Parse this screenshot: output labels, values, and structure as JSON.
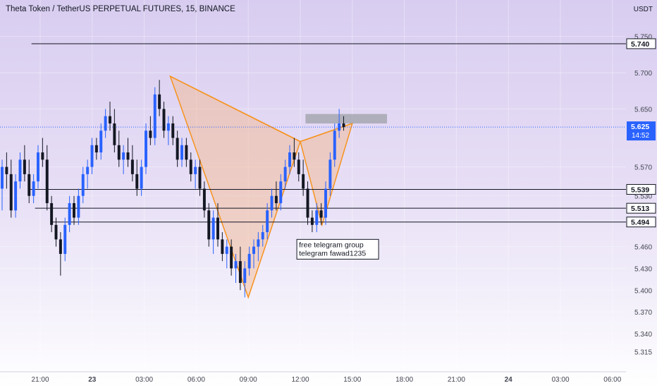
{
  "header": {
    "title": "Theta Token / TetherUS PERPETUAL FUTURES, 15, BINANCE",
    "currency": "USDT"
  },
  "colors": {
    "up": "#2962ff",
    "down": "#131722",
    "pattern_fill": "#f5b58a",
    "pattern_stroke": "#f7931e",
    "level_line": "#131722",
    "price_line": "#2962ff",
    "resistance_box": "#9ea0a8"
  },
  "chart_data": {
    "type": "candlestick",
    "ylim": [
      5.3,
      5.775
    ],
    "y_ticks": [
      "5.750",
      "5.700",
      "5.650",
      "5.570",
      "5.530",
      "5.460",
      "5.430",
      "5.400",
      "5.370",
      "5.340",
      "5.315"
    ],
    "x_ticks": [
      "21:00",
      "23",
      "03:00",
      "06:00",
      "09:00",
      "12:00",
      "15:00",
      "18:00",
      "21:00",
      "24",
      "03:00",
      "06:00"
    ],
    "horizontal_levels": [
      {
        "label": "5.740",
        "value": 5.74
      },
      {
        "label": "5.539",
        "value": 5.539
      },
      {
        "label": "5.513",
        "value": 5.513
      },
      {
        "label": "5.494",
        "value": 5.494
      }
    ],
    "last_price": {
      "label": "5.625",
      "value": 5.625,
      "countdown": "14:52"
    },
    "harmonic_pattern": [
      {
        "t": 4.5,
        "p": 5.695
      },
      {
        "t": 9.0,
        "p": 5.39
      },
      {
        "t": 12.0,
        "p": 5.605
      },
      {
        "t": 13.25,
        "p": 5.49
      },
      {
        "t": 15.0,
        "p": 5.63
      }
    ],
    "annotation": [
      "free telegram group",
      "telegram fawad1235"
    ],
    "candles": [
      {
        "o": 5.54,
        "h": 5.58,
        "l": 5.51,
        "c": 5.57
      },
      {
        "o": 5.57,
        "h": 5.59,
        "l": 5.54,
        "c": 5.56
      },
      {
        "o": 5.56,
        "h": 5.58,
        "l": 5.5,
        "c": 5.51
      },
      {
        "o": 5.51,
        "h": 5.56,
        "l": 5.5,
        "c": 5.55
      },
      {
        "o": 5.55,
        "h": 5.59,
        "l": 5.54,
        "c": 5.58
      },
      {
        "o": 5.58,
        "h": 5.6,
        "l": 5.55,
        "c": 5.56
      },
      {
        "o": 5.56,
        "h": 5.58,
        "l": 5.52,
        "c": 5.53
      },
      {
        "o": 5.53,
        "h": 5.56,
        "l": 5.52,
        "c": 5.55
      },
      {
        "o": 5.55,
        "h": 5.6,
        "l": 5.54,
        "c": 5.59
      },
      {
        "o": 5.59,
        "h": 5.61,
        "l": 5.57,
        "c": 5.58
      },
      {
        "o": 5.58,
        "h": 5.6,
        "l": 5.51,
        "c": 5.52
      },
      {
        "o": 5.52,
        "h": 5.53,
        "l": 5.48,
        "c": 5.49
      },
      {
        "o": 5.49,
        "h": 5.5,
        "l": 5.46,
        "c": 5.47
      },
      {
        "o": 5.47,
        "h": 5.48,
        "l": 5.42,
        "c": 5.45
      },
      {
        "o": 5.45,
        "h": 5.5,
        "l": 5.44,
        "c": 5.49
      },
      {
        "o": 5.49,
        "h": 5.53,
        "l": 5.48,
        "c": 5.52
      },
      {
        "o": 5.52,
        "h": 5.53,
        "l": 5.49,
        "c": 5.5
      },
      {
        "o": 5.5,
        "h": 5.54,
        "l": 5.49,
        "c": 5.53
      },
      {
        "o": 5.53,
        "h": 5.57,
        "l": 5.52,
        "c": 5.56
      },
      {
        "o": 5.56,
        "h": 5.58,
        "l": 5.54,
        "c": 5.57
      },
      {
        "o": 5.57,
        "h": 5.61,
        "l": 5.56,
        "c": 5.6
      },
      {
        "o": 5.6,
        "h": 5.61,
        "l": 5.58,
        "c": 5.59
      },
      {
        "o": 5.59,
        "h": 5.63,
        "l": 5.58,
        "c": 5.62
      },
      {
        "o": 5.62,
        "h": 5.65,
        "l": 5.61,
        "c": 5.64
      },
      {
        "o": 5.64,
        "h": 5.66,
        "l": 5.62,
        "c": 5.63
      },
      {
        "o": 5.63,
        "h": 5.65,
        "l": 5.59,
        "c": 5.6
      },
      {
        "o": 5.6,
        "h": 5.62,
        "l": 5.57,
        "c": 5.58
      },
      {
        "o": 5.58,
        "h": 5.6,
        "l": 5.56,
        "c": 5.59
      },
      {
        "o": 5.59,
        "h": 5.61,
        "l": 5.57,
        "c": 5.58
      },
      {
        "o": 5.58,
        "h": 5.6,
        "l": 5.55,
        "c": 5.56
      },
      {
        "o": 5.56,
        "h": 5.58,
        "l": 5.53,
        "c": 5.54
      },
      {
        "o": 5.54,
        "h": 5.58,
        "l": 5.53,
        "c": 5.57
      },
      {
        "o": 5.57,
        "h": 5.63,
        "l": 5.56,
        "c": 5.62
      },
      {
        "o": 5.62,
        "h": 5.64,
        "l": 5.6,
        "c": 5.61
      },
      {
        "o": 5.61,
        "h": 5.68,
        "l": 5.6,
        "c": 5.67
      },
      {
        "o": 5.67,
        "h": 5.69,
        "l": 5.64,
        "c": 5.65
      },
      {
        "o": 5.65,
        "h": 5.66,
        "l": 5.61,
        "c": 5.62
      },
      {
        "o": 5.62,
        "h": 5.64,
        "l": 5.6,
        "c": 5.63
      },
      {
        "o": 5.63,
        "h": 5.64,
        "l": 5.6,
        "c": 5.61
      },
      {
        "o": 5.61,
        "h": 5.62,
        "l": 5.57,
        "c": 5.58
      },
      {
        "o": 5.58,
        "h": 5.61,
        "l": 5.57,
        "c": 5.6
      },
      {
        "o": 5.6,
        "h": 5.61,
        "l": 5.57,
        "c": 5.58
      },
      {
        "o": 5.58,
        "h": 5.59,
        "l": 5.55,
        "c": 5.56
      },
      {
        "o": 5.56,
        "h": 5.58,
        "l": 5.54,
        "c": 5.57
      },
      {
        "o": 5.57,
        "h": 5.58,
        "l": 5.53,
        "c": 5.54
      },
      {
        "o": 5.54,
        "h": 5.55,
        "l": 5.5,
        "c": 5.51
      },
      {
        "o": 5.51,
        "h": 5.52,
        "l": 5.46,
        "c": 5.47
      },
      {
        "o": 5.47,
        "h": 5.51,
        "l": 5.45,
        "c": 5.5
      },
      {
        "o": 5.5,
        "h": 5.52,
        "l": 5.46,
        "c": 5.47
      },
      {
        "o": 5.47,
        "h": 5.48,
        "l": 5.44,
        "c": 5.45
      },
      {
        "o": 5.45,
        "h": 5.47,
        "l": 5.43,
        "c": 5.46
      },
      {
        "o": 5.46,
        "h": 5.47,
        "l": 5.42,
        "c": 5.43
      },
      {
        "o": 5.43,
        "h": 5.45,
        "l": 5.41,
        "c": 5.44
      },
      {
        "o": 5.44,
        "h": 5.46,
        "l": 5.4,
        "c": 5.41
      },
      {
        "o": 5.41,
        "h": 5.44,
        "l": 5.39,
        "c": 5.43
      },
      {
        "o": 5.43,
        "h": 5.46,
        "l": 5.42,
        "c": 5.45
      },
      {
        "o": 5.45,
        "h": 5.47,
        "l": 5.43,
        "c": 5.46
      },
      {
        "o": 5.46,
        "h": 5.48,
        "l": 5.44,
        "c": 5.47
      },
      {
        "o": 5.47,
        "h": 5.49,
        "l": 5.46,
        "c": 5.48
      },
      {
        "o": 5.48,
        "h": 5.52,
        "l": 5.47,
        "c": 5.51
      },
      {
        "o": 5.51,
        "h": 5.54,
        "l": 5.5,
        "c": 5.53
      },
      {
        "o": 5.53,
        "h": 5.55,
        "l": 5.51,
        "c": 5.52
      },
      {
        "o": 5.52,
        "h": 5.56,
        "l": 5.51,
        "c": 5.55
      },
      {
        "o": 5.55,
        "h": 5.58,
        "l": 5.54,
        "c": 5.57
      },
      {
        "o": 5.57,
        "h": 5.6,
        "l": 5.56,
        "c": 5.59
      },
      {
        "o": 5.59,
        "h": 5.61,
        "l": 5.57,
        "c": 5.58
      },
      {
        "o": 5.58,
        "h": 5.59,
        "l": 5.55,
        "c": 5.56
      },
      {
        "o": 5.56,
        "h": 5.58,
        "l": 5.53,
        "c": 5.54
      },
      {
        "o": 5.54,
        "h": 5.55,
        "l": 5.49,
        "c": 5.5
      },
      {
        "o": 5.5,
        "h": 5.51,
        "l": 5.48,
        "c": 5.49
      },
      {
        "o": 5.49,
        "h": 5.52,
        "l": 5.48,
        "c": 5.51
      },
      {
        "o": 5.51,
        "h": 5.52,
        "l": 5.49,
        "c": 5.5
      },
      {
        "o": 5.5,
        "h": 5.55,
        "l": 5.49,
        "c": 5.54
      },
      {
        "o": 5.54,
        "h": 5.59,
        "l": 5.53,
        "c": 5.58
      },
      {
        "o": 5.58,
        "h": 5.63,
        "l": 5.57,
        "c": 5.62
      },
      {
        "o": 5.62,
        "h": 5.65,
        "l": 5.61,
        "c": 5.63
      },
      {
        "o": 5.63,
        "h": 5.64,
        "l": 5.62,
        "c": 5.625
      }
    ]
  }
}
